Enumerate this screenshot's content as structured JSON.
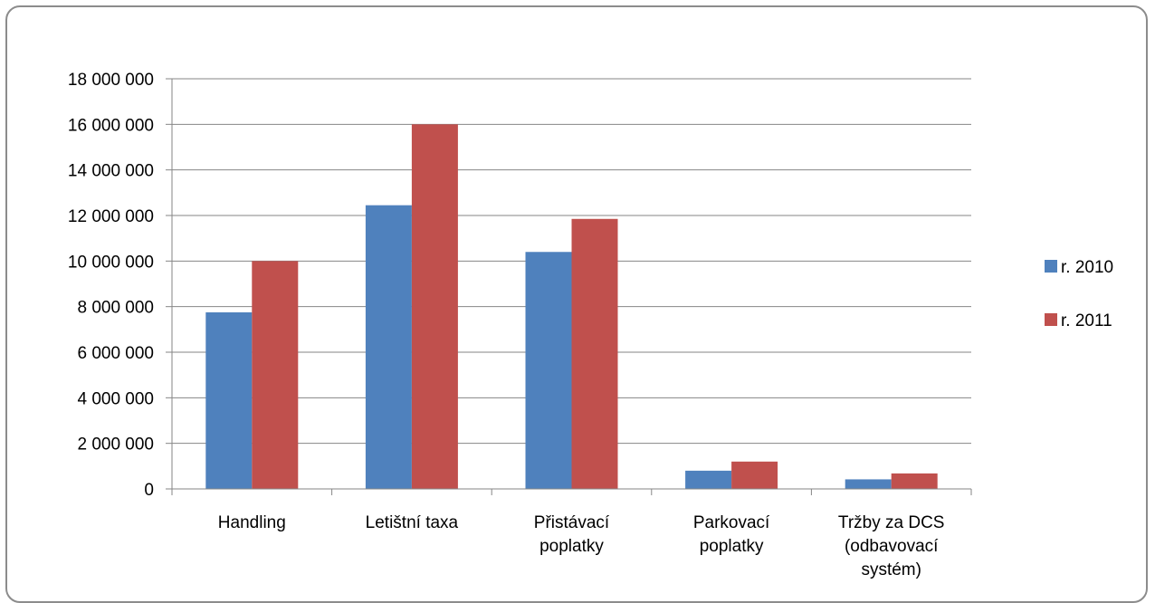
{
  "chart_data": {
    "type": "bar",
    "title": "",
    "xlabel": "",
    "ylabel": "",
    "categories": [
      [
        "Handling"
      ],
      [
        "Letištní taxa"
      ],
      [
        "Přistávací",
        "poplatky"
      ],
      [
        "Parkovací",
        "poplatky"
      ],
      [
        "Tržby za DCS",
        "(odbavovací",
        "systém)"
      ]
    ],
    "series": [
      {
        "name": "r. 2010",
        "color": "#4f81bd",
        "values": [
          7750000,
          12450000,
          10400000,
          800000,
          420000
        ]
      },
      {
        "name": "r. 2011",
        "color": "#c0504d",
        "values": [
          10000000,
          16000000,
          11850000,
          1200000,
          680000
        ]
      }
    ],
    "ylim": [
      0,
      18000000
    ],
    "y_ticks": [
      0,
      2000000,
      4000000,
      6000000,
      8000000,
      10000000,
      12000000,
      14000000,
      16000000,
      18000000
    ],
    "y_tick_labels": [
      "0",
      "2 000 000",
      "4 000 000",
      "6 000 000",
      "8 000 000",
      "10 000 000",
      "12 000 000",
      "14 000 000",
      "16 000 000",
      "18 000 000"
    ],
    "grid": true,
    "legend_position": "right",
    "gridline_color": "#868686"
  }
}
